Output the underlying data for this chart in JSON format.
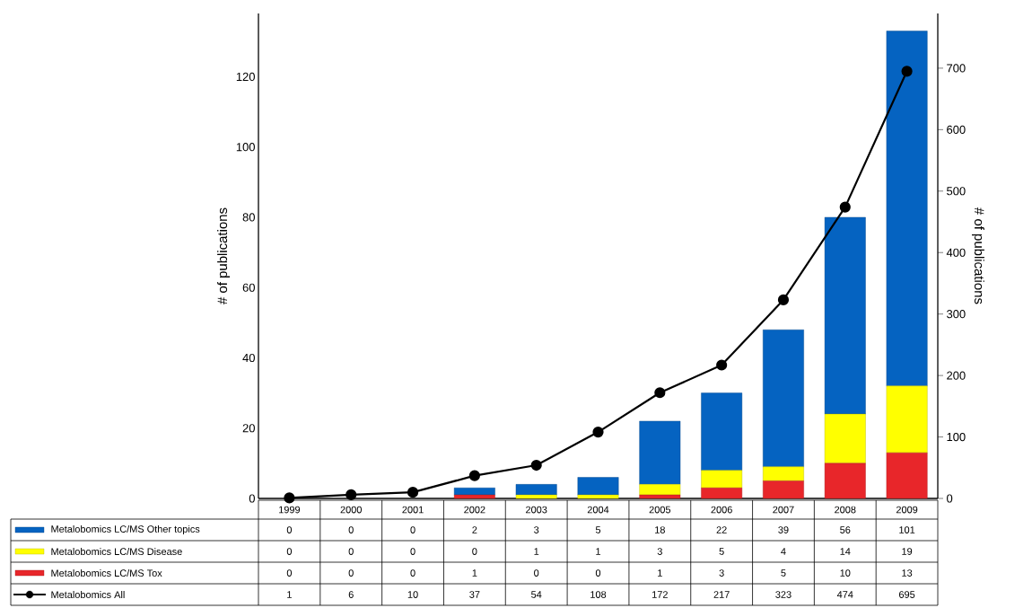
{
  "chart_data": {
    "type": "bar",
    "stacked": true,
    "ylabel": "# of publications",
    "y2label": "# of publications",
    "categories": [
      "1999",
      "2000",
      "2001",
      "2002",
      "2003",
      "2004",
      "2005",
      "2006",
      "2007",
      "2008",
      "2009"
    ],
    "series": [
      {
        "name": "Metalobomics LC/MS Tox",
        "color": "#e8262a",
        "values": [
          0,
          0,
          0,
          1,
          0,
          0,
          1,
          3,
          5,
          10,
          13
        ]
      },
      {
        "name": "Metalobomics LC/MS Disease",
        "color": "#ffff00",
        "values": [
          0,
          0,
          0,
          0,
          1,
          1,
          3,
          5,
          4,
          14,
          19
        ]
      },
      {
        "name": "Metalobomics LC/MS Other topics",
        "color": "#0563c1",
        "values": [
          0,
          0,
          0,
          2,
          3,
          5,
          18,
          22,
          39,
          56,
          101
        ]
      },
      {
        "name": "Metalobomics All",
        "type": "line",
        "axis": "y2",
        "color": "#000000",
        "marker": "circle",
        "line_style": "solid",
        "values": [
          1,
          6,
          10,
          37,
          54,
          108,
          172,
          217,
          323,
          474,
          695
        ]
      }
    ],
    "ylim": [
      0,
      138
    ],
    "yticks": [
      0,
      20,
      40,
      60,
      80,
      100,
      120
    ],
    "y2lim": [
      0,
      789
    ],
    "y2ticks": [
      0,
      100,
      200,
      300,
      400,
      500,
      600,
      700
    ],
    "data_labels": true,
    "legend": "bottom"
  }
}
